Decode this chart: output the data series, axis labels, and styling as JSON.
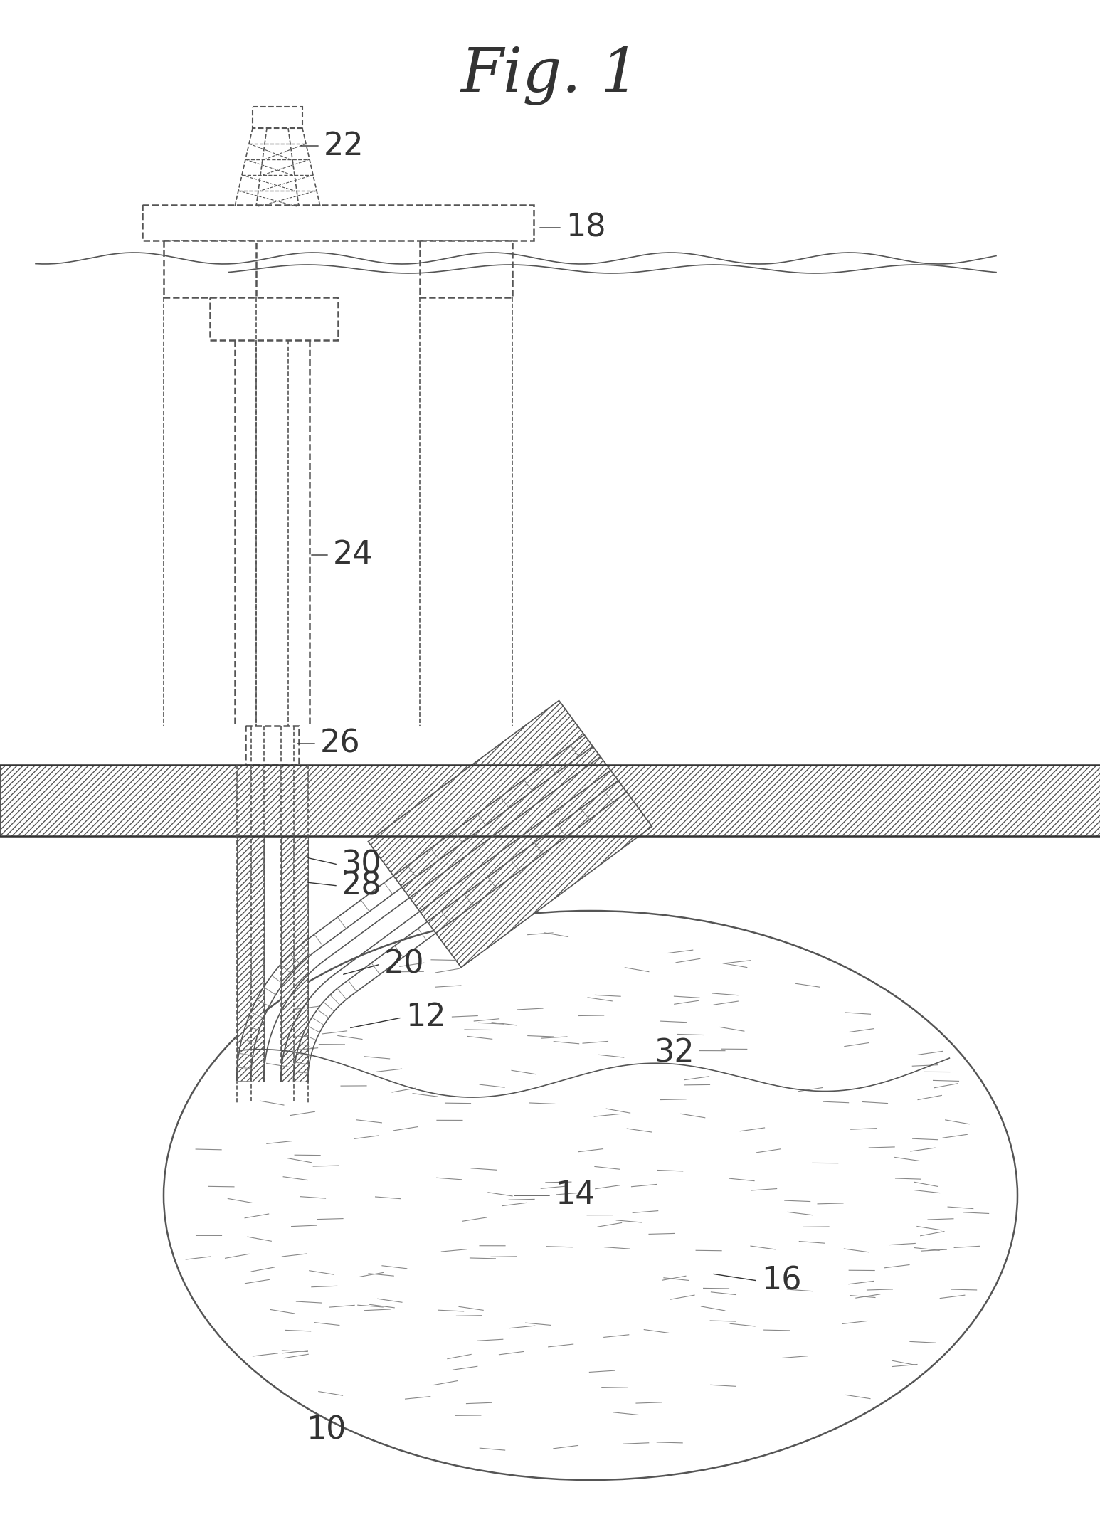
{
  "title": "Fig. 1",
  "bg_color": "#ffffff",
  "lc": "#555555",
  "lc_dark": "#333333",
  "fig_width": 15.46,
  "fig_height": 21.46,
  "dpi": 100
}
